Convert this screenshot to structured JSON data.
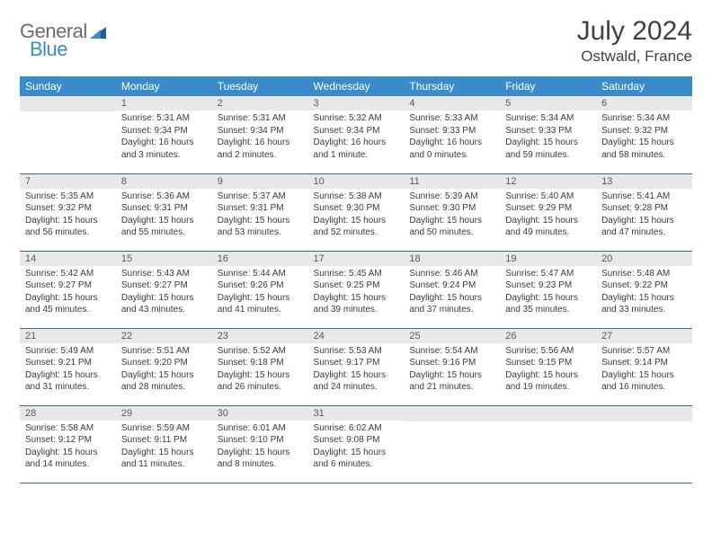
{
  "brand": {
    "part1": "General",
    "part2": "Blue"
  },
  "title": "July 2024",
  "location": "Ostwald, France",
  "colors": {
    "header_bg": "#3a8bc9",
    "header_text": "#ffffff",
    "band_bg": "#e8e8e8",
    "rule": "#3a6a93",
    "body_text": "#3b3b3b",
    "title_text": "#414141",
    "logo_gray": "#6b6b6b",
    "logo_blue": "#3a8bc9"
  },
  "weekdays": [
    "Sunday",
    "Monday",
    "Tuesday",
    "Wednesday",
    "Thursday",
    "Friday",
    "Saturday"
  ],
  "weeks": [
    [
      {
        "n": "",
        "sr": "",
        "ss": "",
        "dl": ""
      },
      {
        "n": "1",
        "sr": "Sunrise: 5:31 AM",
        "ss": "Sunset: 9:34 PM",
        "dl": "Daylight: 16 hours and 3 minutes."
      },
      {
        "n": "2",
        "sr": "Sunrise: 5:31 AM",
        "ss": "Sunset: 9:34 PM",
        "dl": "Daylight: 16 hours and 2 minutes."
      },
      {
        "n": "3",
        "sr": "Sunrise: 5:32 AM",
        "ss": "Sunset: 9:34 PM",
        "dl": "Daylight: 16 hours and 1 minute."
      },
      {
        "n": "4",
        "sr": "Sunrise: 5:33 AM",
        "ss": "Sunset: 9:33 PM",
        "dl": "Daylight: 16 hours and 0 minutes."
      },
      {
        "n": "5",
        "sr": "Sunrise: 5:34 AM",
        "ss": "Sunset: 9:33 PM",
        "dl": "Daylight: 15 hours and 59 minutes."
      },
      {
        "n": "6",
        "sr": "Sunrise: 5:34 AM",
        "ss": "Sunset: 9:32 PM",
        "dl": "Daylight: 15 hours and 58 minutes."
      }
    ],
    [
      {
        "n": "7",
        "sr": "Sunrise: 5:35 AM",
        "ss": "Sunset: 9:32 PM",
        "dl": "Daylight: 15 hours and 56 minutes."
      },
      {
        "n": "8",
        "sr": "Sunrise: 5:36 AM",
        "ss": "Sunset: 9:31 PM",
        "dl": "Daylight: 15 hours and 55 minutes."
      },
      {
        "n": "9",
        "sr": "Sunrise: 5:37 AM",
        "ss": "Sunset: 9:31 PM",
        "dl": "Daylight: 15 hours and 53 minutes."
      },
      {
        "n": "10",
        "sr": "Sunrise: 5:38 AM",
        "ss": "Sunset: 9:30 PM",
        "dl": "Daylight: 15 hours and 52 minutes."
      },
      {
        "n": "11",
        "sr": "Sunrise: 5:39 AM",
        "ss": "Sunset: 9:30 PM",
        "dl": "Daylight: 15 hours and 50 minutes."
      },
      {
        "n": "12",
        "sr": "Sunrise: 5:40 AM",
        "ss": "Sunset: 9:29 PM",
        "dl": "Daylight: 15 hours and 49 minutes."
      },
      {
        "n": "13",
        "sr": "Sunrise: 5:41 AM",
        "ss": "Sunset: 9:28 PM",
        "dl": "Daylight: 15 hours and 47 minutes."
      }
    ],
    [
      {
        "n": "14",
        "sr": "Sunrise: 5:42 AM",
        "ss": "Sunset: 9:27 PM",
        "dl": "Daylight: 15 hours and 45 minutes."
      },
      {
        "n": "15",
        "sr": "Sunrise: 5:43 AM",
        "ss": "Sunset: 9:27 PM",
        "dl": "Daylight: 15 hours and 43 minutes."
      },
      {
        "n": "16",
        "sr": "Sunrise: 5:44 AM",
        "ss": "Sunset: 9:26 PM",
        "dl": "Daylight: 15 hours and 41 minutes."
      },
      {
        "n": "17",
        "sr": "Sunrise: 5:45 AM",
        "ss": "Sunset: 9:25 PM",
        "dl": "Daylight: 15 hours and 39 minutes."
      },
      {
        "n": "18",
        "sr": "Sunrise: 5:46 AM",
        "ss": "Sunset: 9:24 PM",
        "dl": "Daylight: 15 hours and 37 minutes."
      },
      {
        "n": "19",
        "sr": "Sunrise: 5:47 AM",
        "ss": "Sunset: 9:23 PM",
        "dl": "Daylight: 15 hours and 35 minutes."
      },
      {
        "n": "20",
        "sr": "Sunrise: 5:48 AM",
        "ss": "Sunset: 9:22 PM",
        "dl": "Daylight: 15 hours and 33 minutes."
      }
    ],
    [
      {
        "n": "21",
        "sr": "Sunrise: 5:49 AM",
        "ss": "Sunset: 9:21 PM",
        "dl": "Daylight: 15 hours and 31 minutes."
      },
      {
        "n": "22",
        "sr": "Sunrise: 5:51 AM",
        "ss": "Sunset: 9:20 PM",
        "dl": "Daylight: 15 hours and 28 minutes."
      },
      {
        "n": "23",
        "sr": "Sunrise: 5:52 AM",
        "ss": "Sunset: 9:18 PM",
        "dl": "Daylight: 15 hours and 26 minutes."
      },
      {
        "n": "24",
        "sr": "Sunrise: 5:53 AM",
        "ss": "Sunset: 9:17 PM",
        "dl": "Daylight: 15 hours and 24 minutes."
      },
      {
        "n": "25",
        "sr": "Sunrise: 5:54 AM",
        "ss": "Sunset: 9:16 PM",
        "dl": "Daylight: 15 hours and 21 minutes."
      },
      {
        "n": "26",
        "sr": "Sunrise: 5:56 AM",
        "ss": "Sunset: 9:15 PM",
        "dl": "Daylight: 15 hours and 19 minutes."
      },
      {
        "n": "27",
        "sr": "Sunrise: 5:57 AM",
        "ss": "Sunset: 9:14 PM",
        "dl": "Daylight: 15 hours and 16 minutes."
      }
    ],
    [
      {
        "n": "28",
        "sr": "Sunrise: 5:58 AM",
        "ss": "Sunset: 9:12 PM",
        "dl": "Daylight: 15 hours and 14 minutes."
      },
      {
        "n": "29",
        "sr": "Sunrise: 5:59 AM",
        "ss": "Sunset: 9:11 PM",
        "dl": "Daylight: 15 hours and 11 minutes."
      },
      {
        "n": "30",
        "sr": "Sunrise: 6:01 AM",
        "ss": "Sunset: 9:10 PM",
        "dl": "Daylight: 15 hours and 8 minutes."
      },
      {
        "n": "31",
        "sr": "Sunrise: 6:02 AM",
        "ss": "Sunset: 9:08 PM",
        "dl": "Daylight: 15 hours and 6 minutes."
      },
      {
        "n": "",
        "sr": "",
        "ss": "",
        "dl": ""
      },
      {
        "n": "",
        "sr": "",
        "ss": "",
        "dl": ""
      },
      {
        "n": "",
        "sr": "",
        "ss": "",
        "dl": ""
      }
    ]
  ]
}
